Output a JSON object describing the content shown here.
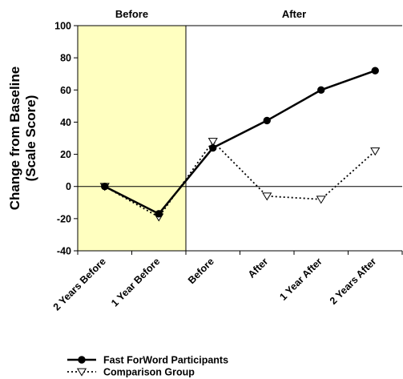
{
  "chart_data": {
    "type": "line",
    "categories": [
      "2 Years Before",
      "1 Year Before",
      "Before",
      "After",
      "1 Year After",
      "2 Years After"
    ],
    "series": [
      {
        "name": "Fast ForWord Participants",
        "values": [
          0,
          -17,
          24,
          41,
          60,
          72
        ],
        "color": "#000000",
        "style": "solid",
        "marker": "filled-circle"
      },
      {
        "name": "Comparison Group",
        "values": [
          0,
          -19,
          28,
          -6,
          -8,
          22
        ],
        "color": "#000000",
        "style": "dotted",
        "marker": "open-triangle-down"
      }
    ],
    "ylabel": "Change from Baseline (Scale Score)",
    "ylabel_lines": [
      "Change from Baseline",
      "(Scale Score)"
    ],
    "ylim": [
      -40,
      100
    ],
    "yticks": [
      -40,
      -20,
      0,
      20,
      40,
      60,
      80,
      100
    ],
    "zero_line": true,
    "regions": [
      {
        "label": "Before",
        "from_index": -0.5,
        "to_index": 1.5,
        "fill": "#ffffc0"
      },
      {
        "label": "After",
        "from_index": 1.5,
        "to_index": 5.5,
        "fill": "#ffffff"
      }
    ],
    "legend_position": "bottom-left"
  }
}
